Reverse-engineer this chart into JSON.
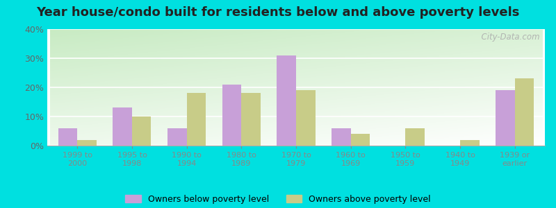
{
  "title": "Year house/condo built for residents below and above poverty levels",
  "categories": [
    "1999 to\n2000",
    "1995 to\n1998",
    "1990 to\n1994",
    "1980 to\n1989",
    "1970 to\n1979",
    "1960 to\n1969",
    "1950 to\n1959",
    "1940 to\n1949",
    "1939 or\nearly"
  ],
  "below_poverty": [
    6,
    13,
    6,
    21,
    31,
    6,
    0,
    0,
    19
  ],
  "above_poverty": [
    2,
    10,
    18,
    18,
    19,
    4,
    6,
    2,
    23
  ],
  "below_color": "#c8a0d8",
  "above_color": "#c8cc88",
  "ylim": [
    0,
    40
  ],
  "yticks": [
    0,
    10,
    20,
    30,
    40
  ],
  "outer_bg": "#00e0e0",
  "title_fontsize": 13,
  "legend_below_label": "Owners below poverty level",
  "legend_above_label": "Owners above poverty level",
  "watermark": "  City-Data.com"
}
